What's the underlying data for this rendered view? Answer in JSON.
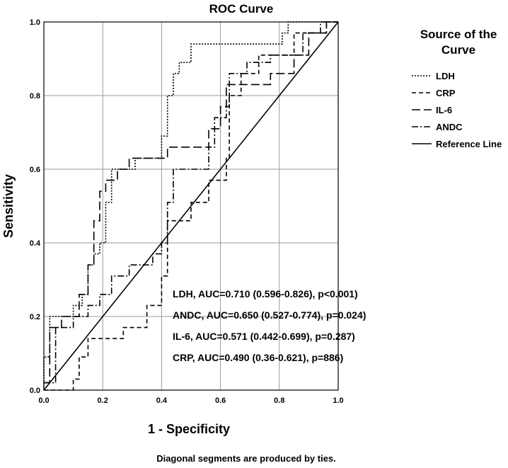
{
  "chart_data": {
    "type": "line",
    "title": "ROC Curve",
    "xlabel": "1 - Specificity",
    "ylabel": "Sensitivity",
    "xlim": [
      0,
      1
    ],
    "ylim": [
      0,
      1
    ],
    "grid": true,
    "x_ticks": [
      "0.0",
      "0.2",
      "0.4",
      "0.6",
      "0.8",
      "1.0"
    ],
    "y_ticks": [
      "0.0",
      "0.2",
      "0.4",
      "0.6",
      "0.8",
      "1.0"
    ],
    "legend": {
      "title": "Source of the Curve",
      "position": "right",
      "entries": [
        "LDH",
        "CRP",
        "IL-6",
        "ANDC",
        "Reference Line"
      ]
    },
    "series": [
      {
        "name": "LDH",
        "dash": "2,2",
        "points": [
          [
            0,
            0
          ],
          [
            0,
            0.09
          ],
          [
            0.02,
            0.09
          ],
          [
            0.02,
            0.2
          ],
          [
            0.1,
            0.2
          ],
          [
            0.1,
            0.23
          ],
          [
            0.13,
            0.23
          ],
          [
            0.13,
            0.26
          ],
          [
            0.15,
            0.26
          ],
          [
            0.15,
            0.34
          ],
          [
            0.17,
            0.34
          ],
          [
            0.17,
            0.37
          ],
          [
            0.19,
            0.37
          ],
          [
            0.19,
            0.4
          ],
          [
            0.21,
            0.4
          ],
          [
            0.21,
            0.51
          ],
          [
            0.23,
            0.51
          ],
          [
            0.23,
            0.6
          ],
          [
            0.31,
            0.6
          ],
          [
            0.31,
            0.63
          ],
          [
            0.4,
            0.63
          ],
          [
            0.4,
            0.69
          ],
          [
            0.42,
            0.69
          ],
          [
            0.42,
            0.8
          ],
          [
            0.44,
            0.8
          ],
          [
            0.44,
            0.86
          ],
          [
            0.46,
            0.86
          ],
          [
            0.46,
            0.89
          ],
          [
            0.5,
            0.89
          ],
          [
            0.5,
            0.94
          ],
          [
            0.81,
            0.94
          ],
          [
            0.81,
            0.97
          ],
          [
            0.83,
            0.97
          ],
          [
            0.83,
            1
          ],
          [
            1,
            1
          ]
        ]
      },
      {
        "name": "CRP",
        "dash": "6,4",
        "points": [
          [
            0,
            0
          ],
          [
            0.1,
            0
          ],
          [
            0.1,
            0.03
          ],
          [
            0.12,
            0.03
          ],
          [
            0.12,
            0.09
          ],
          [
            0.15,
            0.09
          ],
          [
            0.15,
            0.14
          ],
          [
            0.27,
            0.14
          ],
          [
            0.27,
            0.17
          ],
          [
            0.35,
            0.17
          ],
          [
            0.35,
            0.23
          ],
          [
            0.4,
            0.23
          ],
          [
            0.4,
            0.31
          ],
          [
            0.42,
            0.31
          ],
          [
            0.42,
            0.46
          ],
          [
            0.5,
            0.46
          ],
          [
            0.5,
            0.51
          ],
          [
            0.56,
            0.51
          ],
          [
            0.56,
            0.57
          ],
          [
            0.62,
            0.57
          ],
          [
            0.62,
            0.63
          ],
          [
            0.63,
            0.63
          ],
          [
            0.63,
            0.8
          ],
          [
            0.67,
            0.8
          ],
          [
            0.67,
            0.86
          ],
          [
            0.73,
            0.86
          ],
          [
            0.73,
            0.91
          ],
          [
            0.85,
            0.91
          ],
          [
            0.85,
            0.97
          ],
          [
            0.96,
            0.97
          ],
          [
            0.96,
            1
          ],
          [
            1,
            1
          ]
        ]
      },
      {
        "name": "IL-6",
        "dash": "12,5",
        "points": [
          [
            0,
            0.02
          ],
          [
            0.02,
            0.02
          ],
          [
            0.02,
            0.17
          ],
          [
            0.06,
            0.17
          ],
          [
            0.06,
            0.2
          ],
          [
            0.12,
            0.2
          ],
          [
            0.12,
            0.26
          ],
          [
            0.15,
            0.26
          ],
          [
            0.15,
            0.34
          ],
          [
            0.17,
            0.34
          ],
          [
            0.17,
            0.46
          ],
          [
            0.19,
            0.46
          ],
          [
            0.19,
            0.54
          ],
          [
            0.21,
            0.54
          ],
          [
            0.21,
            0.57
          ],
          [
            0.25,
            0.57
          ],
          [
            0.25,
            0.6
          ],
          [
            0.29,
            0.6
          ],
          [
            0.29,
            0.63
          ],
          [
            0.35,
            0.63
          ],
          [
            0.35,
            0.63
          ],
          [
            0.42,
            0.63
          ],
          [
            0.42,
            0.66
          ],
          [
            0.56,
            0.66
          ],
          [
            0.56,
            0.71
          ],
          [
            0.6,
            0.71
          ],
          [
            0.6,
            0.77
          ],
          [
            0.62,
            0.77
          ],
          [
            0.62,
            0.83
          ],
          [
            0.77,
            0.83
          ],
          [
            0.77,
            0.86
          ],
          [
            0.85,
            0.86
          ],
          [
            0.85,
            0.91
          ],
          [
            0.9,
            0.91
          ],
          [
            0.9,
            0.97
          ],
          [
            0.96,
            0.97
          ],
          [
            0.96,
            1
          ],
          [
            1,
            1
          ]
        ]
      },
      {
        "name": "ANDC",
        "dash": "9,3,2,3",
        "points": [
          [
            0,
            0.02
          ],
          [
            0.04,
            0.02
          ],
          [
            0.04,
            0.17
          ],
          [
            0.1,
            0.17
          ],
          [
            0.1,
            0.2
          ],
          [
            0.15,
            0.2
          ],
          [
            0.15,
            0.23
          ],
          [
            0.19,
            0.23
          ],
          [
            0.19,
            0.26
          ],
          [
            0.23,
            0.26
          ],
          [
            0.23,
            0.31
          ],
          [
            0.29,
            0.31
          ],
          [
            0.29,
            0.34
          ],
          [
            0.37,
            0.34
          ],
          [
            0.37,
            0.37
          ],
          [
            0.4,
            0.37
          ],
          [
            0.4,
            0.4
          ],
          [
            0.42,
            0.4
          ],
          [
            0.42,
            0.51
          ],
          [
            0.44,
            0.51
          ],
          [
            0.44,
            0.6
          ],
          [
            0.56,
            0.6
          ],
          [
            0.56,
            0.66
          ],
          [
            0.58,
            0.66
          ],
          [
            0.58,
            0.74
          ],
          [
            0.62,
            0.74
          ],
          [
            0.62,
            0.77
          ],
          [
            0.63,
            0.77
          ],
          [
            0.63,
            0.86
          ],
          [
            0.69,
            0.86
          ],
          [
            0.69,
            0.89
          ],
          [
            0.77,
            0.89
          ],
          [
            0.77,
            0.91
          ],
          [
            0.88,
            0.91
          ],
          [
            0.88,
            0.97
          ],
          [
            0.94,
            0.97
          ],
          [
            0.94,
            1
          ],
          [
            1,
            1
          ]
        ]
      },
      {
        "name": "Reference Line",
        "dash": "",
        "points": [
          [
            0,
            0
          ],
          [
            1,
            1
          ]
        ]
      }
    ],
    "annotations": [
      "LDH, AUC=0.710 (0.596-0.826), p<0.001)",
      "ANDC, AUC=0.650 (0.527-0.774), p=0.024)",
      "IL-6, AUC=0.571 (0.442-0.699), p=0.287)",
      "CRP, AUC=0.490 (0.36-0.621), p=886)"
    ],
    "footnote": "Diagonal segments are produced by ties."
  }
}
